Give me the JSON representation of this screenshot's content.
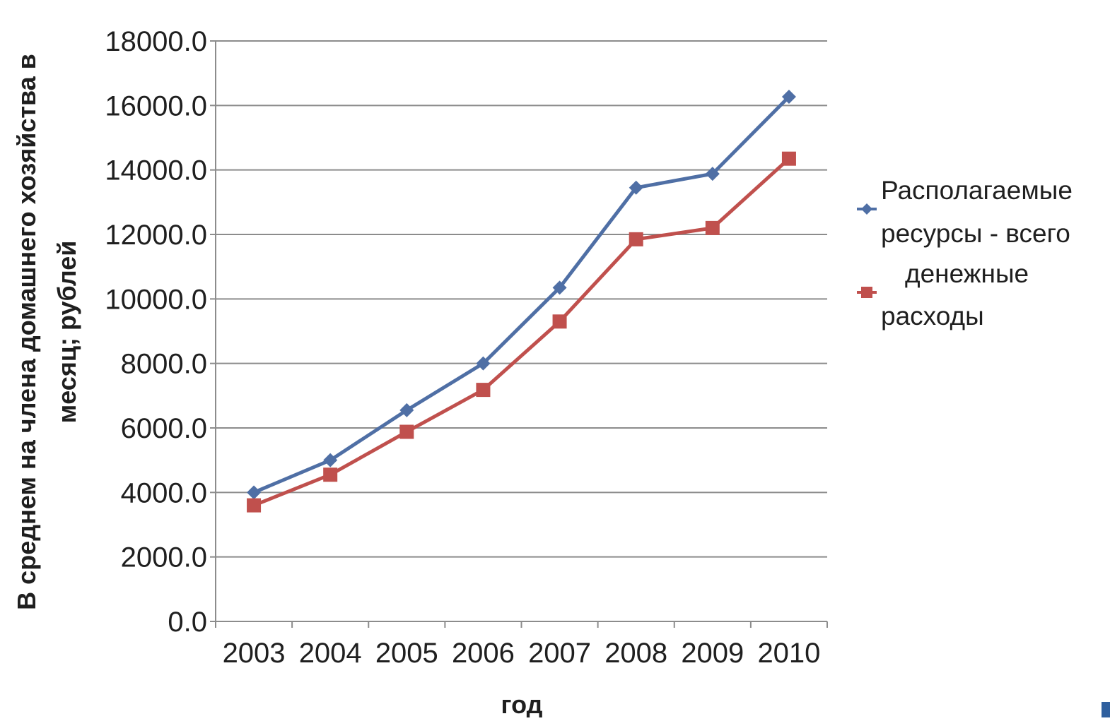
{
  "chart_data": {
    "type": "line",
    "categories": [
      "2003",
      "2004",
      "2005",
      "2006",
      "2007",
      "2008",
      "2009",
      "2010"
    ],
    "series": [
      {
        "name_lines": [
          "Располагаемые",
          "ресурсы - всего"
        ],
        "color": "#4f6fa5",
        "marker": "diamond",
        "values": [
          4000,
          5000,
          6550,
          8000,
          10350,
          13450,
          13880,
          16270
        ]
      },
      {
        "name_lines": [
          "денежные",
          "расходы"
        ],
        "color": "#c0504d",
        "marker": "square",
        "values": [
          3600,
          4550,
          5880,
          7180,
          9300,
          11850,
          12200,
          14350
        ]
      }
    ],
    "y_ticks": [
      "18000.0",
      "16000.0",
      "14000.0",
      "12000.0",
      "10000.0",
      "8000.0",
      "6000.0",
      "4000.0",
      "2000.0",
      "0.0"
    ],
    "ylim": [
      0,
      18000
    ],
    "xlabel": "год",
    "ylabel_lines": [
      "В среднем на члена домашнего хозяйства в",
      "месяц; рублей"
    ],
    "grid": "horizontal",
    "legend_position": "right"
  }
}
